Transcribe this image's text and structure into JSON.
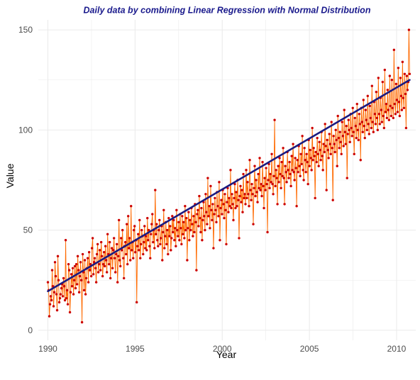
{
  "chart_data": {
    "type": "line",
    "title": "Daily data by combining Linear Regression with Normal Distribution",
    "xlabel": "Year",
    "ylabel": "Value",
    "xlim": [
      1989.45,
      2011.1
    ],
    "ylim": [
      -5,
      155
    ],
    "x_ticks": [
      1990,
      1995,
      2000,
      2005,
      2010
    ],
    "x_tick_labels": [
      "1990",
      "1995",
      "2000",
      "2005",
      "2010"
    ],
    "y_ticks": [
      0,
      50,
      100,
      150
    ],
    "y_tick_labels": [
      "0",
      "50",
      "100",
      "150"
    ],
    "grid": true,
    "legend": "none",
    "colors": {
      "title": "#1a1a8c",
      "series_line": "#ff6a00",
      "points": "#cc0000",
      "regression": "#1a1a80",
      "grid": "#ebebeb"
    },
    "series": [
      {
        "kind": "observed",
        "x_start": 1990.0,
        "x_end": 2010.75,
        "values": [
          24,
          20,
          7,
          13,
          17,
          15,
          30,
          22,
          12,
          19,
          34,
          27,
          18,
          10,
          37,
          25,
          14,
          16,
          18,
          21,
          23,
          17,
          26,
          22,
          15,
          45,
          16,
          20,
          13,
          33,
          30,
          9,
          19,
          28,
          22,
          31,
          18,
          25,
          32,
          21,
          33,
          23,
          37,
          30,
          19,
          27,
          34,
          25,
          4,
          38,
          29,
          20,
          35,
          18,
          26,
          31,
          36,
          24,
          39,
          30,
          33,
          27,
          41,
          46,
          28,
          34,
          36,
          31,
          24,
          38,
          43,
          29,
          33,
          40,
          30,
          44,
          37,
          27,
          33,
          39,
          32,
          42,
          35,
          29,
          48,
          38,
          33,
          44,
          26,
          36,
          41,
          31,
          40,
          46,
          36,
          29,
          38,
          43,
          24,
          37,
          55,
          35,
          32,
          46,
          40,
          50,
          36,
          26,
          42,
          44,
          38,
          53,
          33,
          57,
          41,
          46,
          35,
          62,
          40,
          44,
          36,
          50,
          52,
          39,
          45,
          14,
          42,
          48,
          40,
          55,
          36,
          43,
          50,
          47,
          38,
          44,
          52,
          41,
          47,
          40,
          56,
          45,
          50,
          42,
          36,
          48,
          53,
          58,
          44,
          50,
          41,
          70,
          48,
          53,
          45,
          42,
          50,
          55,
          43,
          46,
          52,
          35,
          49,
          60,
          41,
          47,
          54,
          43,
          50,
          38,
          56,
          47,
          52,
          40,
          46,
          57,
          49,
          55,
          45,
          51,
          42,
          60,
          50,
          47,
          54,
          45,
          58,
          51,
          43,
          57,
          48,
          54,
          46,
          62,
          50,
          56,
          35,
          51,
          59,
          45,
          55,
          50,
          61,
          53,
          47,
          57,
          49,
          63,
          54,
          30,
          58,
          60,
          52,
          67,
          56,
          49,
          61,
          45,
          55,
          64,
          57,
          50,
          68,
          59,
          53,
          76,
          57,
          62,
          51,
          72,
          60,
          55,
          63,
          41,
          58,
          66,
          60,
          54,
          69,
          62,
          57,
          74,
          45,
          61,
          65,
          58,
          70,
          63,
          56,
          68,
          60,
          43,
          64,
          71,
          59,
          66,
          62,
          80,
          61,
          68,
          63,
          55,
          66,
          73,
          61,
          69,
          62,
          75,
          65,
          46,
          67,
          72,
          64,
          70,
          59,
          78,
          66,
          68,
          63,
          80,
          66,
          74,
          68,
          62,
          85,
          70,
          65,
          73,
          68,
          53,
          71,
          82,
          67,
          75,
          69,
          64,
          78,
          71,
          86,
          70,
          73,
          67,
          84,
          72,
          61,
          76,
          70,
          81,
          73,
          49,
          75,
          83,
          71,
          78,
          74,
          88,
          73,
          68,
          77,
          105,
          72,
          80,
          76,
          63,
          82,
          74,
          86,
          78,
          71,
          84,
          77,
          91,
          76,
          63,
          82,
          79,
          74,
          89,
          80,
          76,
          84,
          78,
          72,
          87,
          80,
          93,
          79,
          75,
          86,
          81,
          62,
          85,
          79,
          92,
          82,
          77,
          88,
          83,
          97,
          80,
          75,
          91,
          85,
          79,
          88,
          84,
          73,
          95,
          82,
          90,
          86,
          80,
          101,
          85,
          91,
          87,
          66,
          89,
          84,
          96,
          88,
          82,
          94,
          90,
          85,
          99,
          87,
          80,
          93,
          89,
          103,
          92,
          70,
          95,
          90,
          86,
          98,
          93,
          88,
          104,
          91,
          65,
          97,
          93,
          89,
          100,
          95,
          82,
          107,
          96,
          91,
          99,
          94,
          88,
          104,
          97,
          92,
          110,
          99,
          93,
          102,
          76,
          98,
          105,
          100,
          94,
          108,
          101,
          97,
          111,
          99,
          88,
          106,
          102,
          96,
          113,
          100,
          95,
          108,
          103,
          85,
          111,
          104,
          99,
          115,
          102,
          96,
          110,
          105,
          100,
          117,
          103,
          98,
          112,
          106,
          101,
          122,
          104,
          99,
          114,
          108,
          103,
          119,
          106,
          100,
          126,
          108,
          103,
          116,
          110,
          104,
          124,
          107,
          101,
          130,
          109,
          113,
          106,
          120,
          110,
          105,
          127,
          112,
          107,
          125,
          111,
          106,
          140,
          113,
          108,
          123,
          115,
          109,
          131,
          114,
          107,
          126,
          117,
          110,
          134,
          116,
          111,
          128,
          118,
          101,
          127,
          120,
          124,
          150,
          128
        ]
      },
      {
        "kind": "fitted",
        "x": [
          1990.0,
          2010.75
        ],
        "y": [
          19.5,
          125.0
        ]
      }
    ]
  }
}
